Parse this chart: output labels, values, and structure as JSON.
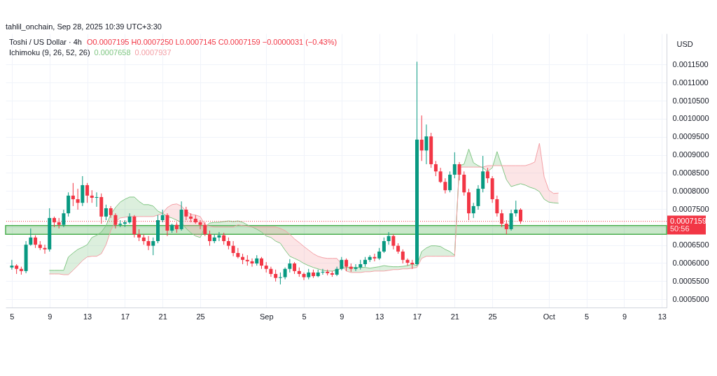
{
  "chart_data": {
    "type": "candlestick",
    "title": "Toshi / US Dollar · 4h",
    "ylabel": "USD",
    "annotations": [
      "tahlil_onchain, Sep 28, 2025 10:39 UTC+3:30",
      "O0.0007195 H0.0007250 L0.0007145 C0.0007159 −0.0000031 (−0.43%)",
      "Ichimoku (9, 26, 52, 26)",
      "0.0007658",
      "0.0007937",
      "50:56"
    ],
    "x": [
      "2025-08-05T00:00",
      "2025-08-05T12:00",
      "2025-08-06T00:00",
      "2025-08-06T12:00",
      "2025-08-07T00:00",
      "2025-08-07T12:00",
      "2025-08-08T00:00",
      "2025-08-08T12:00",
      "2025-08-09T00:00",
      "2025-08-09T12:00",
      "2025-08-10T00:00",
      "2025-08-10T12:00",
      "2025-08-11T00:00",
      "2025-08-11T12:00",
      "2025-08-12T00:00",
      "2025-08-12T12:00",
      "2025-08-13T00:00",
      "2025-08-13T12:00",
      "2025-08-14T00:00",
      "2025-08-14T12:00",
      "2025-08-15T00:00",
      "2025-08-15T12:00",
      "2025-08-16T00:00",
      "2025-08-16T12:00",
      "2025-08-17T00:00",
      "2025-08-17T12:00",
      "2025-08-18T00:00",
      "2025-08-18T12:00",
      "2025-08-19T00:00",
      "2025-08-19T12:00",
      "2025-08-20T00:00",
      "2025-08-20T12:00",
      "2025-08-21T00:00",
      "2025-08-21T12:00",
      "2025-08-22T00:00",
      "2025-08-22T12:00",
      "2025-08-23T00:00",
      "2025-08-23T12:00",
      "2025-08-24T00:00",
      "2025-08-24T12:00",
      "2025-08-25T00:00",
      "2025-08-25T12:00",
      "2025-08-26T00:00",
      "2025-08-26T12:00",
      "2025-08-27T00:00",
      "2025-08-27T12:00",
      "2025-08-28T00:00",
      "2025-08-28T12:00",
      "2025-08-29T00:00",
      "2025-08-29T12:00",
      "2025-08-30T00:00",
      "2025-08-30T12:00",
      "2025-08-31T00:00",
      "2025-08-31T12:00",
      "2025-09-01T00:00",
      "2025-09-01T12:00",
      "2025-09-02T00:00",
      "2025-09-02T12:00",
      "2025-09-03T00:00",
      "2025-09-03T12:00",
      "2025-09-04T00:00",
      "2025-09-04T12:00",
      "2025-09-05T00:00",
      "2025-09-05T12:00",
      "2025-09-06T00:00",
      "2025-09-06T12:00",
      "2025-09-07T00:00",
      "2025-09-07T12:00",
      "2025-09-08T00:00",
      "2025-09-08T12:00",
      "2025-09-09T00:00",
      "2025-09-09T12:00",
      "2025-09-10T00:00",
      "2025-09-10T12:00",
      "2025-09-11T00:00",
      "2025-09-11T12:00",
      "2025-09-12T00:00",
      "2025-09-12T12:00",
      "2025-09-13T00:00",
      "2025-09-13T12:00",
      "2025-09-14T00:00",
      "2025-09-14T12:00",
      "2025-09-15T00:00",
      "2025-09-15T12:00",
      "2025-09-16T00:00",
      "2025-09-16T12:00",
      "2025-09-17T00:00",
      "2025-09-17T12:00",
      "2025-09-18T00:00",
      "2025-09-18T12:00",
      "2025-09-19T00:00",
      "2025-09-19T12:00",
      "2025-09-20T00:00",
      "2025-09-20T12:00",
      "2025-09-21T00:00",
      "2025-09-21T12:00",
      "2025-09-22T00:00",
      "2025-09-22T12:00",
      "2025-09-23T00:00",
      "2025-09-23T12:00",
      "2025-09-24T00:00",
      "2025-09-24T12:00",
      "2025-09-25T00:00",
      "2025-09-25T12:00",
      "2025-09-26T00:00",
      "2025-09-26T12:00",
      "2025-09-27T00:00",
      "2025-09-27T12:00",
      "2025-09-28T00:00"
    ],
    "ohlc": [
      [
        0.000588,
        0.000609,
        0.000582,
        0.000593
      ],
      [
        0.000593,
        0.000597,
        0.00057,
        0.000584
      ],
      [
        0.000584,
        0.00059,
        0.000568,
        0.000578
      ],
      [
        0.000578,
        0.000661,
        0.000572,
        0.000651
      ],
      [
        0.000651,
        0.000696,
        0.000648,
        0.000671
      ],
      [
        0.000671,
        0.000677,
        0.000642,
        0.000651
      ],
      [
        0.000651,
        0.000661,
        0.000636,
        0.000642
      ],
      [
        0.000642,
        0.000651,
        0.000626,
        0.000638
      ],
      [
        0.000638,
        0.000752,
        0.000632,
        0.000725
      ],
      [
        0.000725,
        0.000729,
        0.0007,
        0.000713
      ],
      [
        0.000713,
        0.000725,
        0.000696,
        0.000706
      ],
      [
        0.000706,
        0.000748,
        0.0007,
        0.000738
      ],
      [
        0.000738,
        0.000796,
        0.000729,
        0.000787
      ],
      [
        0.000787,
        0.000822,
        0.000758,
        0.000777
      ],
      [
        0.000777,
        0.000806,
        0.000748,
        0.000767
      ],
      [
        0.000767,
        0.000841,
        0.000758,
        0.000816
      ],
      [
        0.000816,
        0.000822,
        0.000767,
        0.000787
      ],
      [
        0.000787,
        0.000802,
        0.000767,
        0.000781
      ],
      [
        0.000781,
        0.000796,
        0.000756,
        0.000783
      ],
      [
        0.000783,
        0.000793,
        0.000709,
        0.000729
      ],
      [
        0.000729,
        0.000762,
        0.000719,
        0.000752
      ],
      [
        0.000752,
        0.000758,
        0.000725,
        0.000733
      ],
      [
        0.000733,
        0.000738,
        0.000696,
        0.000706
      ],
      [
        0.000706,
        0.000719,
        0.0007,
        0.000709
      ],
      [
        0.000709,
        0.000719,
        0.0007,
        0.000713
      ],
      [
        0.000713,
        0.000738,
        0.000709,
        0.000729
      ],
      [
        0.000729,
        0.000733,
        0.000671,
        0.00068
      ],
      [
        0.00068,
        0.000694,
        0.000661,
        0.000671
      ],
      [
        0.000671,
        0.00068,
        0.000651,
        0.000661
      ],
      [
        0.000661,
        0.000675,
        0.000636,
        0.000648
      ],
      [
        0.000648,
        0.000671,
        0.000622,
        0.000661
      ],
      [
        0.000661,
        0.000733,
        0.000655,
        0.000719
      ],
      [
        0.000719,
        0.000748,
        0.000713,
        0.000733
      ],
      [
        0.000733,
        0.000738,
        0.000675,
        0.00069
      ],
      [
        0.00069,
        0.000709,
        0.000684,
        0.000706
      ],
      [
        0.000706,
        0.000713,
        0.000684,
        0.000694
      ],
      [
        0.000694,
        0.000771,
        0.00069,
        0.000748
      ],
      [
        0.000748,
        0.000756,
        0.000719,
        0.000729
      ],
      [
        0.000729,
        0.000738,
        0.000713,
        0.000723
      ],
      [
        0.000723,
        0.000733,
        0.000709,
        0.000713
      ],
      [
        0.000713,
        0.000719,
        0.000694,
        0.000706
      ],
      [
        0.000706,
        0.000713,
        0.000675,
        0.00068
      ],
      [
        0.00068,
        0.00069,
        0.000648,
        0.000661
      ],
      [
        0.000661,
        0.00068,
        0.000655,
        0.000671
      ],
      [
        0.000671,
        0.000686,
        0.000661,
        0.000677
      ],
      [
        0.000677,
        0.000684,
        0.000651,
        0.000661
      ],
      [
        0.000661,
        0.000671,
        0.000638,
        0.000648
      ],
      [
        0.000648,
        0.000661,
        0.000619,
        0.000628
      ],
      [
        0.000628,
        0.000642,
        0.000613,
        0.000617
      ],
      [
        0.000617,
        0.000626,
        0.000597,
        0.000609
      ],
      [
        0.000609,
        0.000622,
        0.000593,
        0.000605
      ],
      [
        0.000605,
        0.000613,
        0.00059,
        0.000599
      ],
      [
        0.000599,
        0.000622,
        0.000593,
        0.000613
      ],
      [
        0.000613,
        0.000617,
        0.000584,
        0.000593
      ],
      [
        0.000593,
        0.000603,
        0.000574,
        0.000584
      ],
      [
        0.000584,
        0.00059,
        0.000562,
        0.00057
      ],
      [
        0.00057,
        0.000582,
        0.000549,
        0.000559
      ],
      [
        0.000559,
        0.000574,
        0.000541,
        0.000561
      ],
      [
        0.000561,
        0.000588,
        0.000555,
        0.000584
      ],
      [
        0.000584,
        0.000611,
        0.000574,
        0.000599
      ],
      [
        0.000599,
        0.000603,
        0.00057,
        0.000578
      ],
      [
        0.000578,
        0.000588,
        0.000562,
        0.00057
      ],
      [
        0.00057,
        0.000574,
        0.000553,
        0.000561
      ],
      [
        0.000561,
        0.000584,
        0.000555,
        0.000574
      ],
      [
        0.000574,
        0.000582,
        0.000559,
        0.000564
      ],
      [
        0.000564,
        0.000582,
        0.000561,
        0.000574
      ],
      [
        0.000574,
        0.000584,
        0.000568,
        0.000576
      ],
      [
        0.000576,
        0.000582,
        0.000566,
        0.000572
      ],
      [
        0.000572,
        0.000578,
        0.000562,
        0.000568
      ],
      [
        0.000568,
        0.00059,
        0.000564,
        0.000584
      ],
      [
        0.000584,
        0.000617,
        0.00058,
        0.000609
      ],
      [
        0.000609,
        0.000613,
        0.000578,
        0.00059
      ],
      [
        0.00059,
        0.000599,
        0.000576,
        0.000584
      ],
      [
        0.000584,
        0.000597,
        0.000578,
        0.000588
      ],
      [
        0.000588,
        0.000609,
        0.000582,
        0.000597
      ],
      [
        0.000597,
        0.000617,
        0.00059,
        0.000609
      ],
      [
        0.000609,
        0.000622,
        0.000603,
        0.000617
      ],
      [
        0.000617,
        0.000626,
        0.000605,
        0.000613
      ],
      [
        0.000613,
        0.000642,
        0.000609,
        0.000632
      ],
      [
        0.000632,
        0.000671,
        0.000628,
        0.000661
      ],
      [
        0.000661,
        0.000686,
        0.000651,
        0.000675
      ],
      [
        0.000675,
        0.00068,
        0.000638,
        0.000648
      ],
      [
        0.000648,
        0.000655,
        0.000626,
        0.000632
      ],
      [
        0.000632,
        0.000638,
        0.000599,
        0.000609
      ],
      [
        0.000609,
        0.000613,
        0.000593,
        0.000601
      ],
      [
        0.000601,
        0.000609,
        0.000584,
        0.000597
      ],
      [
        0.000597,
        0.001158,
        0.000593,
        0.000942
      ],
      [
        0.000942,
        0.001009,
        0.000883,
        0.000912
      ],
      [
        0.000912,
        0.000984,
        0.000874,
        0.000951
      ],
      [
        0.000951,
        0.000961,
        0.000864,
        0.000874
      ],
      [
        0.000874,
        0.000883,
        0.000841,
        0.000854
      ],
      [
        0.000854,
        0.000864,
        0.000822,
        0.000825
      ],
      [
        0.000825,
        0.000835,
        0.000793,
        0.000802
      ],
      [
        0.000802,
        0.000854,
        0.000796,
        0.000845
      ],
      [
        0.000845,
        0.000907,
        0.000835,
        0.000874
      ],
      [
        0.000874,
        0.00088,
        0.000829,
        0.000845
      ],
      [
        0.000845,
        0.000854,
        0.000787,
        0.000796
      ],
      [
        0.000796,
        0.000806,
        0.000719,
        0.000738
      ],
      [
        0.000738,
        0.000767,
        0.000725,
        0.000758
      ],
      [
        0.000758,
        0.000816,
        0.000748,
        0.000806
      ],
      [
        0.000806,
        0.000897,
        0.000796,
        0.000854
      ],
      [
        0.000854,
        0.000864,
        0.000822,
        0.000835
      ],
      [
        0.000835,
        0.000841,
        0.000767,
        0.000777
      ],
      [
        0.000777,
        0.000787,
        0.000729,
        0.000738
      ],
      [
        0.000738,
        0.000748,
        0.0007,
        0.000709
      ],
      [
        0.000709,
        0.000719,
        0.00068,
        0.000694
      ],
      [
        0.000694,
        0.000748,
        0.00069,
        0.000738
      ],
      [
        0.000738,
        0.000773,
        0.000729,
        0.000748
      ],
      [
        0.000748,
        0.000752,
        0.000709,
        0.0007159
      ]
    ],
    "series": [
      {
        "type": "line",
        "color": "#81c784",
        "x": [
          "2025-08-09T00:00",
          "2025-08-09T12:00",
          "2025-08-10T00:00",
          "2025-08-10T12:00",
          "2025-08-11T00:00",
          "2025-08-11T12:00",
          "2025-08-12T00:00",
          "2025-08-12T12:00",
          "2025-08-13T00:00",
          "2025-08-13T12:00",
          "2025-08-14T00:00",
          "2025-08-14T12:00",
          "2025-08-15T00:00",
          "2025-08-15T12:00",
          "2025-08-16T00:00",
          "2025-08-16T12:00",
          "2025-08-17T00:00",
          "2025-08-17T12:00",
          "2025-08-18T00:00",
          "2025-08-18T12:00",
          "2025-08-19T00:00",
          "2025-08-19T12:00",
          "2025-08-20T00:00",
          "2025-08-20T12:00",
          "2025-08-21T00:00",
          "2025-08-21T12:00",
          "2025-08-22T00:00",
          "2025-08-22T12:00",
          "2025-08-23T00:00",
          "2025-08-23T12:00",
          "2025-08-24T00:00",
          "2025-08-24T12:00",
          "2025-08-25T00:00",
          "2025-08-25T12:00",
          "2025-08-26T00:00",
          "2025-08-26T12:00",
          "2025-08-27T00:00",
          "2025-08-27T12:00",
          "2025-08-28T00:00",
          "2025-08-28T12:00",
          "2025-08-29T00:00",
          "2025-08-29T12:00",
          "2025-08-30T00:00",
          "2025-08-30T12:00",
          "2025-08-31T00:00",
          "2025-08-31T12:00",
          "2025-09-01T00:00",
          "2025-09-01T12:00",
          "2025-09-02T00:00",
          "2025-09-02T12:00",
          "2025-09-03T00:00",
          "2025-09-03T12:00",
          "2025-09-04T00:00",
          "2025-09-04T12:00",
          "2025-09-05T00:00",
          "2025-09-05T12:00",
          "2025-09-06T00:00",
          "2025-09-06T12:00",
          "2025-09-07T00:00",
          "2025-09-07T12:00",
          "2025-09-08T00:00",
          "2025-09-08T12:00",
          "2025-09-09T00:00",
          "2025-09-09T12:00",
          "2025-09-10T00:00",
          "2025-09-10T12:00",
          "2025-09-11T00:00",
          "2025-09-11T12:00",
          "2025-09-12T00:00",
          "2025-09-12T12:00",
          "2025-09-13T00:00",
          "2025-09-13T12:00",
          "2025-09-14T00:00",
          "2025-09-14T12:00",
          "2025-09-15T00:00",
          "2025-09-15T12:00",
          "2025-09-16T00:00",
          "2025-09-16T12:00",
          "2025-09-17T00:00",
          "2025-09-17T12:00",
          "2025-09-18T00:00",
          "2025-09-18T12:00",
          "2025-09-19T00:00",
          "2025-09-19T12:00",
          "2025-09-20T00:00",
          "2025-09-20T12:00",
          "2025-09-21T00:00",
          "2025-09-21T12:00",
          "2025-09-22T00:00",
          "2025-09-22T12:00",
          "2025-09-23T00:00",
          "2025-09-23T12:00",
          "2025-09-24T00:00",
          "2025-09-24T12:00",
          "2025-09-25T00:00",
          "2025-09-25T12:00",
          "2025-09-26T00:00",
          "2025-09-26T12:00",
          "2025-09-27T00:00",
          "2025-09-27T12:00",
          "2025-09-28T00:00",
          "2025-09-28T12:00",
          "2025-09-29T00:00",
          "2025-09-29T12:00",
          "2025-09-30T00:00",
          "2025-09-30T12:00",
          "2025-10-01T00:00",
          "2025-10-01T12:00",
          "2025-10-02T00:00"
        ],
        "values": [
          0.00058,
          0.00058,
          0.00058,
          0.00058,
          0.000617,
          0.000628,
          0.000638,
          0.000644,
          0.000651,
          0.000671,
          0.000677,
          0.000686,
          0.000704,
          0.000735,
          0.000754,
          0.000769,
          0.000777,
          0.000783,
          0.000783,
          0.000771,
          0.000762,
          0.000762,
          0.000758,
          0.000744,
          0.000738,
          0.000729,
          0.000725,
          0.000719,
          0.000713,
          0.000696,
          0.000684,
          0.000675,
          0.000671,
          0.0007,
          0.000711,
          0.000713,
          0.000713,
          0.000715,
          0.000717,
          0.000715,
          0.000717,
          0.000713,
          0.000706,
          0.0007,
          0.000694,
          0.000686,
          0.000675,
          0.000671,
          0.000661,
          0.000655,
          0.000636,
          0.000619,
          0.000613,
          0.000607,
          0.000599,
          0.000593,
          0.000588,
          0.000584,
          0.00058,
          0.000578,
          0.000578,
          0.00058,
          0.000586,
          0.000588,
          0.000588,
          0.000588,
          0.000588,
          0.000588,
          0.000586,
          0.000588,
          0.00059,
          0.000593,
          0.000591,
          0.00059,
          0.00059,
          0.000591,
          0.000593,
          0.000597,
          0.000593,
          0.000632,
          0.000642,
          0.000648,
          0.000648,
          0.000646,
          0.000638,
          0.000632,
          0.000622,
          0.00087,
          0.000874,
          0.000916,
          0.000878,
          0.00087,
          0.000864,
          0.000854,
          0.000864,
          0.000909,
          0.00087,
          0.000831,
          0.000812,
          0.000816,
          0.00082,
          0.000816,
          0.00081,
          0.000806,
          0.000798,
          0.000777,
          0.000769,
          0.000767,
          0.000766
        ]
      },
      {
        "type": "line",
        "color": "#f4a0a6",
        "x": [
          "2025-08-09T00:00",
          "2025-08-09T12:00",
          "2025-08-10T00:00",
          "2025-08-10T12:00",
          "2025-08-11T00:00",
          "2025-08-11T12:00",
          "2025-08-12T00:00",
          "2025-08-12T12:00",
          "2025-08-13T00:00",
          "2025-08-13T12:00",
          "2025-08-14T00:00",
          "2025-08-14T12:00",
          "2025-08-15T00:00",
          "2025-08-15T12:00",
          "2025-08-16T00:00",
          "2025-08-16T12:00",
          "2025-08-17T00:00",
          "2025-08-17T12:00",
          "2025-08-18T00:00",
          "2025-08-18T12:00",
          "2025-08-19T00:00",
          "2025-08-19T12:00",
          "2025-08-20T00:00",
          "2025-08-20T12:00",
          "2025-08-21T00:00",
          "2025-08-21T12:00",
          "2025-08-22T00:00",
          "2025-08-22T12:00",
          "2025-08-23T00:00",
          "2025-08-23T12:00",
          "2025-08-24T00:00",
          "2025-08-24T12:00",
          "2025-08-25T00:00",
          "2025-08-25T12:00",
          "2025-08-26T00:00",
          "2025-08-26T12:00",
          "2025-08-27T00:00",
          "2025-08-27T12:00",
          "2025-08-28T00:00",
          "2025-08-28T12:00",
          "2025-08-29T00:00",
          "2025-08-29T12:00",
          "2025-08-30T00:00",
          "2025-08-30T12:00",
          "2025-08-31T00:00",
          "2025-08-31T12:00",
          "2025-09-01T00:00",
          "2025-09-01T12:00",
          "2025-09-02T00:00",
          "2025-09-02T12:00",
          "2025-09-03T00:00",
          "2025-09-03T12:00",
          "2025-09-04T00:00",
          "2025-09-04T12:00",
          "2025-09-05T00:00",
          "2025-09-05T12:00",
          "2025-09-06T00:00",
          "2025-09-06T12:00",
          "2025-09-07T00:00",
          "2025-09-07T12:00",
          "2025-09-08T00:00",
          "2025-09-08T12:00",
          "2025-09-09T00:00",
          "2025-09-09T12:00",
          "2025-09-10T00:00",
          "2025-09-10T12:00",
          "2025-09-11T00:00",
          "2025-09-11T12:00",
          "2025-09-12T00:00",
          "2025-09-12T12:00",
          "2025-09-13T00:00",
          "2025-09-13T12:00",
          "2025-09-14T00:00",
          "2025-09-14T12:00",
          "2025-09-15T00:00",
          "2025-09-15T12:00",
          "2025-09-16T00:00",
          "2025-09-16T12:00",
          "2025-09-17T00:00",
          "2025-09-17T12:00",
          "2025-09-18T00:00",
          "2025-09-18T12:00",
          "2025-09-19T00:00",
          "2025-09-19T12:00",
          "2025-09-20T00:00",
          "2025-09-20T12:00",
          "2025-09-21T00:00",
          "2025-09-21T12:00",
          "2025-09-22T00:00",
          "2025-09-22T12:00",
          "2025-09-23T00:00",
          "2025-09-23T12:00",
          "2025-09-24T00:00",
          "2025-09-24T12:00",
          "2025-09-25T00:00",
          "2025-09-25T12:00",
          "2025-09-26T00:00",
          "2025-09-26T12:00",
          "2025-09-27T00:00",
          "2025-09-27T12:00",
          "2025-09-28T00:00",
          "2025-09-28T12:00",
          "2025-09-29T00:00",
          "2025-09-29T12:00",
          "2025-09-30T00:00",
          "2025-09-30T12:00",
          "2025-10-01T00:00",
          "2025-10-01T12:00",
          "2025-10-02T00:00"
        ],
        "values": [
          0.00057,
          0.00057,
          0.00057,
          0.000568,
          0.000568,
          0.00058,
          0.000593,
          0.000607,
          0.000617,
          0.000619,
          0.000619,
          0.000626,
          0.000651,
          0.00069,
          0.000715,
          0.000725,
          0.000727,
          0.000729,
          0.000729,
          0.000729,
          0.000729,
          0.000729,
          0.000729,
          0.000733,
          0.000738,
          0.000754,
          0.000762,
          0.000764,
          0.000758,
          0.000744,
          0.000735,
          0.000733,
          0.000729,
          0.000706,
          0.000702,
          0.0007,
          0.0007,
          0.0007,
          0.0007,
          0.0007,
          0.000706,
          0.000704,
          0.000702,
          0.0007,
          0.0007,
          0.0007,
          0.0007,
          0.0007,
          0.0007,
          0.000696,
          0.00069,
          0.00068,
          0.000667,
          0.000657,
          0.000646,
          0.000636,
          0.000626,
          0.000619,
          0.000615,
          0.000613,
          0.000613,
          0.000613,
          0.000597,
          0.000578,
          0.000574,
          0.000574,
          0.000574,
          0.000576,
          0.000576,
          0.000578,
          0.000578,
          0.000578,
          0.00058,
          0.000582,
          0.000582,
          0.000584,
          0.000584,
          0.000586,
          0.000588,
          0.000613,
          0.000619,
          0.000619,
          0.000619,
          0.000619,
          0.000619,
          0.000619,
          0.000619,
          0.000866,
          0.000866,
          0.000866,
          0.000866,
          0.000866,
          0.000866,
          0.00087,
          0.00087,
          0.00087,
          0.00087,
          0.00087,
          0.00087,
          0.00087,
          0.00087,
          0.00087,
          0.000874,
          0.00088,
          0.000932,
          0.000839,
          0.000802,
          0.000793,
          0.000794
        ]
      }
    ],
    "ref_lines": [
      {
        "axis": "y",
        "value": 0.0007159,
        "label": "0.0007159",
        "color": "#f23645",
        "line_style": "dotted"
      }
    ],
    "bands": [
      {
        "axis": "y",
        "from": 0.00068,
        "to": 0.000704,
        "color": "#4caf50"
      }
    ],
    "xlim": [
      "2025-08-04T17:00",
      "2025-10-13T03:00"
    ],
    "ylim": [
      0.000477,
      0.001236
    ],
    "xticks": [
      {
        "value": "2025-08-05",
        "label": "5"
      },
      {
        "value": "2025-08-09",
        "label": "9"
      },
      {
        "value": "2025-08-13",
        "label": "13"
      },
      {
        "value": "2025-08-17",
        "label": "17"
      },
      {
        "value": "2025-08-21",
        "label": "21"
      },
      {
        "value": "2025-08-25",
        "label": "25"
      },
      {
        "value": "2025-09-01",
        "label": "Sep"
      },
      {
        "value": "2025-09-05",
        "label": "5"
      },
      {
        "value": "2025-09-09",
        "label": "9"
      },
      {
        "value": "2025-09-13",
        "label": "13"
      },
      {
        "value": "2025-09-17",
        "label": "17"
      },
      {
        "value": "2025-09-21",
        "label": "21"
      },
      {
        "value": "2025-09-25",
        "label": "25"
      },
      {
        "value": "2025-10-01",
        "label": "Oct"
      },
      {
        "value": "2025-10-05",
        "label": "5"
      },
      {
        "value": "2025-10-09",
        "label": "9"
      },
      {
        "value": "2025-10-13",
        "label": "13"
      }
    ],
    "yticks": [
      {
        "value": 0.0005,
        "label": "0.0005000"
      },
      {
        "value": 0.00055,
        "label": "0.0005500"
      },
      {
        "value": 0.0006,
        "label": "0.0006000"
      },
      {
        "value": 0.00065,
        "label": "0.0006500"
      },
      {
        "value": 0.0007,
        "label": null
      },
      {
        "value": 0.00075,
        "label": "0.0007500"
      },
      {
        "value": 0.0008,
        "label": "0.0008000"
      },
      {
        "value": 0.00085,
        "label": "0.0008500"
      },
      {
        "value": 0.0009,
        "label": "0.0009000"
      },
      {
        "value": 0.00095,
        "label": "0.0009500"
      },
      {
        "value": 0.001,
        "label": "0.0010000"
      },
      {
        "value": 0.00105,
        "label": "0.0010500"
      },
      {
        "value": 0.0011,
        "label": "0.0011000"
      },
      {
        "value": 0.00115,
        "label": "0.0011500"
      }
    ],
    "grid": true
  }
}
